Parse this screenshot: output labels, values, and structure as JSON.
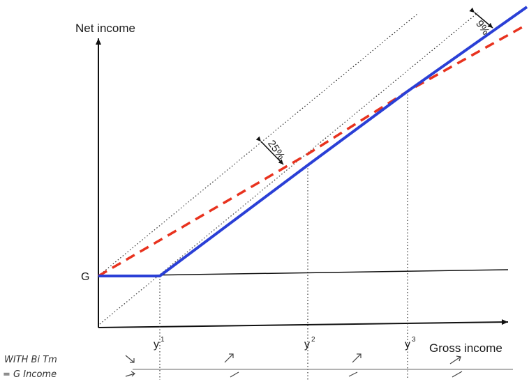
{
  "axes": {
    "y_label": "Net income",
    "x_label": "Gross income"
  },
  "labels": {
    "g": "G",
    "y1_base": "y",
    "y1_sup": "1",
    "y2_base": "y",
    "y2_sup": "2",
    "y3_base": "y",
    "y3_sup": "3",
    "rate_25": "25%",
    "rate_9": "9%"
  },
  "handwriting": {
    "line1": "WITH Bi   Tm",
    "line2": "= G    Income"
  },
  "colors": {
    "blue_line": "#2a3fd6",
    "red_dashed": "#e8321e",
    "axis": "#111111",
    "guide": "#333333"
  }
}
